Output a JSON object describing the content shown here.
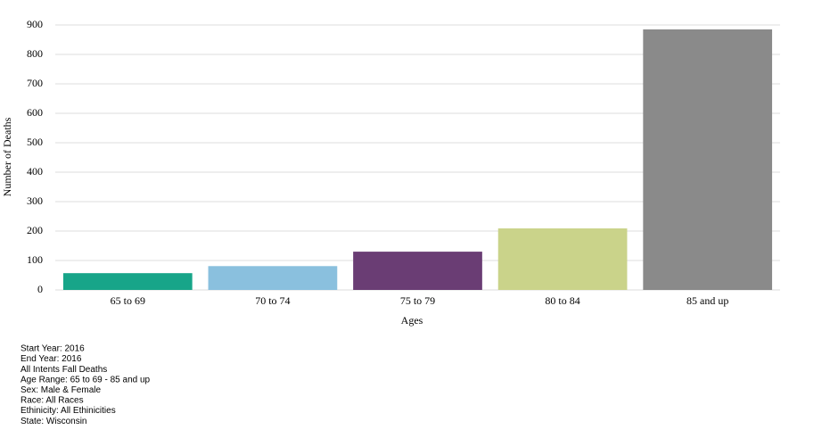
{
  "chart_data": {
    "type": "bar",
    "x_label": "Ages",
    "y_label": "Number of Deaths",
    "categories": [
      "65 to 69",
      "70 to 74",
      "75 to 79",
      "80 to 84",
      "85 and up"
    ],
    "values": [
      57,
      81,
      130,
      209,
      885
    ],
    "colors": [
      "#17a589",
      "#8ac0de",
      "#6a3d74",
      "#cad38a",
      "#8a8a8a"
    ],
    "ylim": [
      0,
      900
    ],
    "yticks": [
      0,
      100,
      200,
      300,
      400,
      500,
      600,
      700,
      800,
      900
    ],
    "grid": true,
    "notes": [
      "Start Year: 2016",
      "End Year: 2016",
      "All Intents Fall Deaths",
      "Age Range: 65 to 69 - 85 and up",
      "Sex: Male & Female",
      "Race: All Races",
      "Ethinicity: All Ethinicities",
      "State: Wisconsin"
    ]
  }
}
